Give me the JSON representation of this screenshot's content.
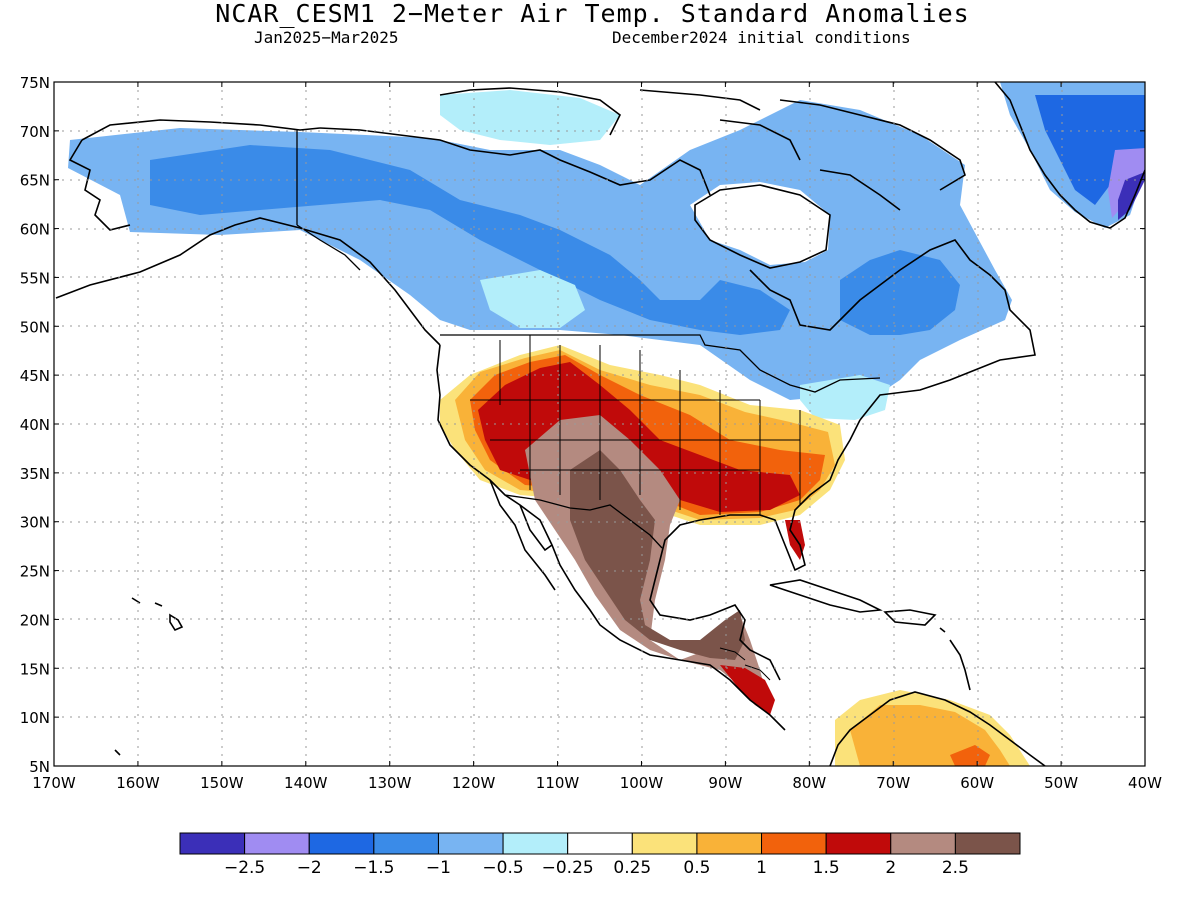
{
  "title": "NCAR_CESM1 2−Meter Air Temp. Standard Anomalies",
  "subtitle_left": "Jan2025−Mar2025",
  "subtitle_right": "December2024 initial conditions",
  "map": {
    "lat_labels": [
      "75N",
      "70N",
      "65N",
      "60N",
      "55N",
      "50N",
      "45N",
      "40N",
      "35N",
      "30N",
      "25N",
      "20N",
      "15N",
      "10N",
      "5N"
    ],
    "lon_labels": [
      "170W",
      "160W",
      "150W",
      "140W",
      "130W",
      "120W",
      "110W",
      "100W",
      "90W",
      "80W",
      "70W",
      "60W",
      "50W",
      "40W"
    ],
    "lon_range": [
      -170,
      -40
    ],
    "lat_range": [
      5,
      75
    ],
    "grid": true
  },
  "colorbar": {
    "colors": [
      "#3b2fb8",
      "#a08cf2",
      "#1e68e3",
      "#3a8be8",
      "#78b4f2",
      "#b3eefa",
      "#ffffff",
      "#fbe27a",
      "#f9b238",
      "#f2620c",
      "#c00a0a",
      "#b48a80",
      "#7b544a"
    ],
    "labels": [
      "−2.5",
      "−2",
      "−1.5",
      "−1",
      "−0.5",
      "−0.25",
      "0.25",
      "0.5",
      "1",
      "1.5",
      "2",
      "2.5"
    ]
  },
  "colors": {
    "land_outline": "#000000",
    "grid": "#9a9a9a"
  }
}
